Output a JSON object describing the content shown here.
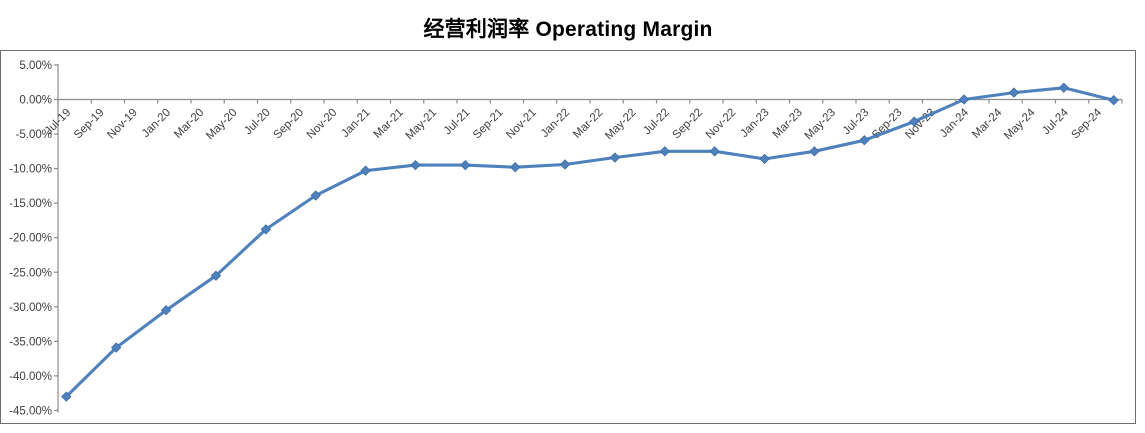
{
  "title": "经营利润率 Operating Margin",
  "chart_data": {
    "type": "line",
    "title": "经营利润率 Operating Margin",
    "legend": "none",
    "grid": "zero-line-only",
    "x_axis": {
      "labels": [
        "Jul-19",
        "Sep-19",
        "Nov-19",
        "Jan-20",
        "Mar-20",
        "May-20",
        "Jul-20",
        "Sep-20",
        "Nov-20",
        "Jan-21",
        "Mar-21",
        "May-21",
        "Jul-21",
        "Sep-21",
        "Nov-21",
        "Jan-22",
        "Mar-22",
        "May-22",
        "Jul-22",
        "Sep-22",
        "Nov-22",
        "Jan-23",
        "Mar-23",
        "May-23",
        "Jul-23",
        "Sep-23",
        "Nov-23",
        "Jan-24",
        "Mar-24",
        "May-24",
        "Jul-24",
        "Sep-24"
      ],
      "label_interval_months": 2,
      "label_rotation_deg": -45,
      "total_axis_months": 64
    },
    "y_axis": {
      "tick_labels": [
        "5.00%",
        "0.00%",
        "-5.00%",
        "-10.00%",
        "-15.00%",
        "-20.00%",
        "-25.00%",
        "-30.00%",
        "-35.00%",
        "-40.00%",
        "-45.00%"
      ],
      "tick_values": [
        5,
        0,
        -5,
        -10,
        -15,
        -20,
        -25,
        -30,
        -35,
        -40,
        -45
      ],
      "min": -45,
      "max": 5,
      "step": 5,
      "unit": "%"
    },
    "series": [
      {
        "name": "经营利润率 Operating Margin",
        "color": "#4F81BD",
        "marker": "diamond",
        "x_months_since_first_label": [
          0,
          3,
          6,
          9,
          12,
          15,
          18,
          21,
          24,
          27,
          30,
          33,
          36,
          39,
          42,
          45,
          48,
          51,
          54,
          57,
          60,
          63
        ],
        "points_est_dates": [
          "Jul-19",
          "Oct-19",
          "Jan-20",
          "Apr-20",
          "Jul-20",
          "Oct-20",
          "Jan-21",
          "Apr-21",
          "Jul-21",
          "Oct-21",
          "Jan-22",
          "Apr-22",
          "Jul-22",
          "Oct-22",
          "Jan-23",
          "Apr-23",
          "Jul-23",
          "Oct-23",
          "Jan-24",
          "Apr-24",
          "Jul-24",
          "Oct-24"
        ],
        "values_pct": [
          -43.0,
          -35.9,
          -30.5,
          -25.5,
          -18.8,
          -13.9,
          -10.3,
          -9.5,
          -9.5,
          -9.8,
          -9.4,
          -8.4,
          -7.5,
          -7.5,
          -8.6,
          -7.5,
          -5.9,
          -3.2,
          0.0,
          1.0,
          1.7,
          -0.1
        ]
      }
    ]
  },
  "style": {
    "line_color": "#4F81BD",
    "marker_edge_color": "#3A6DA5",
    "axis_color": "#8c8c8c",
    "text_color": "#3f3f3f",
    "frame_color": "#6e6e6e",
    "background": "#ffffff"
  }
}
